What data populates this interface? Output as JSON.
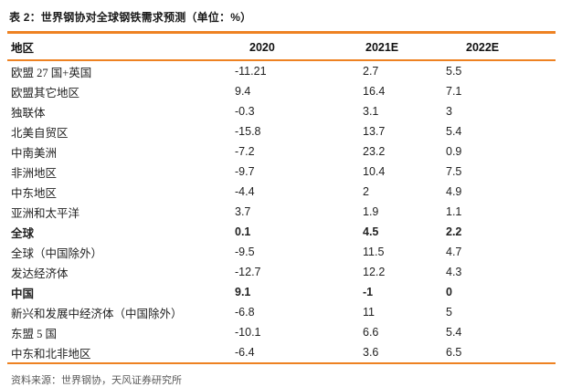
{
  "title": "表 2：世界钢协对全球钢铁需求预测（单位：%）",
  "table": {
    "columns": [
      "地区",
      "2020",
      "2021E",
      "2022E"
    ],
    "rows": [
      {
        "cells": [
          "欧盟 27 国+英国",
          "-11.21",
          "2.7",
          "5.5"
        ],
        "bold": false
      },
      {
        "cells": [
          "欧盟其它地区",
          "9.4",
          "16.4",
          "7.1"
        ],
        "bold": false
      },
      {
        "cells": [
          "独联体",
          "-0.3",
          "3.1",
          "3"
        ],
        "bold": false
      },
      {
        "cells": [
          "北美自贸区",
          "-15.8",
          "13.7",
          "5.4"
        ],
        "bold": false
      },
      {
        "cells": [
          "中南美洲",
          "-7.2",
          "23.2",
          "0.9"
        ],
        "bold": false
      },
      {
        "cells": [
          "非洲地区",
          "-9.7",
          "10.4",
          "7.5"
        ],
        "bold": false
      },
      {
        "cells": [
          "中东地区",
          "-4.4",
          "2",
          "4.9"
        ],
        "bold": false
      },
      {
        "cells": [
          "亚洲和太平洋",
          "3.7",
          "1.9",
          "1.1"
        ],
        "bold": false
      },
      {
        "cells": [
          "全球",
          "0.1",
          "4.5",
          "2.2"
        ],
        "bold": true
      },
      {
        "cells": [
          "全球（中国除外）",
          "-9.5",
          "11.5",
          "4.7"
        ],
        "bold": false
      },
      {
        "cells": [
          "发达经济体",
          "-12.7",
          "12.2",
          "4.3"
        ],
        "bold": false
      },
      {
        "cells": [
          "中国",
          "9.1",
          "-1",
          "0"
        ],
        "bold": true
      },
      {
        "cells": [
          "新兴和发展中经济体（中国除外）",
          "-6.8",
          "11",
          "5"
        ],
        "bold": false
      },
      {
        "cells": [
          "东盟 5 国",
          "-10.1",
          "6.6",
          "5.4"
        ],
        "bold": false
      },
      {
        "cells": [
          "中东和北非地区",
          "-6.4",
          "3.6",
          "6.5"
        ],
        "bold": false
      }
    ]
  },
  "source": "资料来源：世界钢协，天风证券研究所",
  "colors": {
    "accent_orange": "#EE8222",
    "title_text": "#1A1A1A",
    "body_text": "#222222",
    "source_text": "#595959"
  }
}
